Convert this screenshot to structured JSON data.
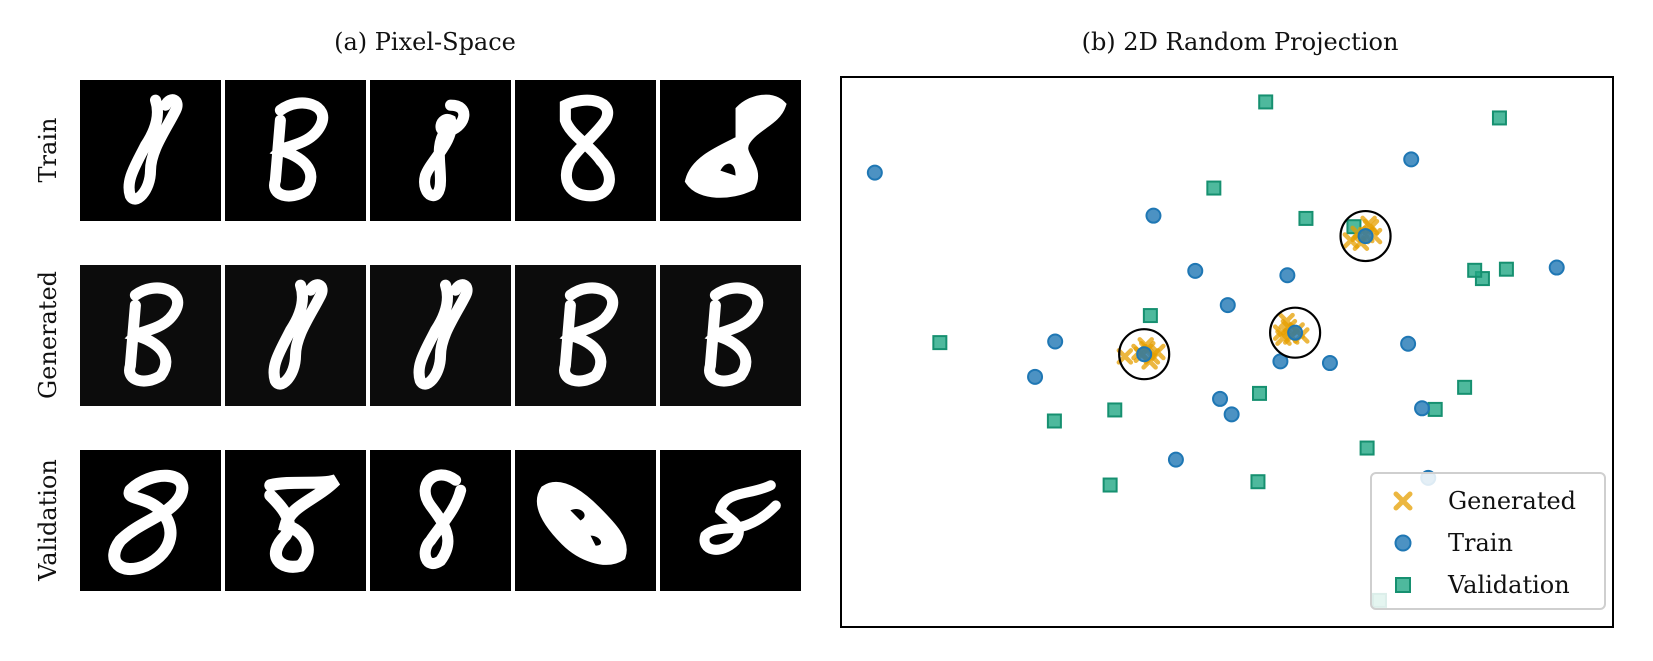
{
  "panel_a": {
    "title": "(a) Pixel-Space",
    "rows": [
      {
        "label": "Train",
        "tiles": [
          "8",
          "8",
          "8",
          "8",
          "8"
        ]
      },
      {
        "label": "Generated",
        "tiles": [
          "8",
          "8",
          "8",
          "8",
          "8"
        ]
      },
      {
        "label": "Validation",
        "tiles": [
          "8",
          "8",
          "8",
          "8",
          "8"
        ]
      }
    ]
  },
  "panel_b": {
    "title": "(b) 2D Random Projection"
  },
  "colors": {
    "generated": "#E69F00",
    "train": "#1f77b4",
    "validation": "#22a884"
  },
  "chart_data": {
    "type": "scatter",
    "title": "(b) 2D Random Projection",
    "xlabel": "",
    "ylabel": "",
    "xlim": [
      0,
      100
    ],
    "ylim": [
      0,
      100
    ],
    "grid": false,
    "legend_position": "bottom-right",
    "series": [
      {
        "name": "Generated",
        "marker": "x",
        "points": [
          [
            39.0,
            49.5
          ],
          [
            39.7,
            50.5
          ],
          [
            40.3,
            49.2
          ],
          [
            38.7,
            50.0
          ],
          [
            40.0,
            48.3
          ],
          [
            39.5,
            51.2
          ],
          [
            41.0,
            50.0
          ],
          [
            36.8,
            49.2
          ],
          [
            57.0,
            53.5
          ],
          [
            58.0,
            54.5
          ],
          [
            58.3,
            52.8
          ],
          [
            59.0,
            53.9
          ],
          [
            57.7,
            55.6
          ],
          [
            59.6,
            53.0
          ],
          [
            57.3,
            52.6
          ],
          [
            66.0,
            70.2
          ],
          [
            67.0,
            71.4
          ],
          [
            68.0,
            71.2
          ],
          [
            68.6,
            72.6
          ],
          [
            67.3,
            69.8
          ],
          [
            69.0,
            71.0
          ],
          [
            68.3,
            73.2
          ]
        ]
      },
      {
        "name": "Train",
        "marker": "o",
        "points": [
          [
            4.5,
            82.5
          ],
          [
            39.3,
            49.6
          ],
          [
            58.8,
            53.5
          ],
          [
            67.9,
            71.0
          ],
          [
            73.8,
            84.9
          ],
          [
            40.5,
            74.7
          ],
          [
            45.9,
            64.7
          ],
          [
            57.8,
            63.9
          ],
          [
            50.1,
            58.5
          ],
          [
            27.8,
            51.9
          ],
          [
            25.2,
            45.5
          ],
          [
            49.1,
            41.5
          ],
          [
            56.9,
            48.3
          ],
          [
            63.3,
            48.0
          ],
          [
            73.4,
            51.5
          ],
          [
            75.2,
            39.8
          ],
          [
            50.6,
            38.7
          ],
          [
            43.4,
            30.5
          ],
          [
            76.0,
            27.2
          ],
          [
            92.6,
            65.3
          ]
        ]
      },
      {
        "name": "Validation",
        "marker": "s",
        "points": [
          [
            55.0,
            95.3
          ],
          [
            85.2,
            92.4
          ],
          [
            48.3,
            79.7
          ],
          [
            60.2,
            74.2
          ],
          [
            66.4,
            72.7
          ],
          [
            83.0,
            63.3
          ],
          [
            82.0,
            64.8
          ],
          [
            86.1,
            65.0
          ],
          [
            40.1,
            56.6
          ],
          [
            12.9,
            51.7
          ],
          [
            54.2,
            42.5
          ],
          [
            80.7,
            43.6
          ],
          [
            35.5,
            39.5
          ],
          [
            27.7,
            37.5
          ],
          [
            76.9,
            39.6
          ],
          [
            68.1,
            32.6
          ],
          [
            34.9,
            25.9
          ],
          [
            54.0,
            26.5
          ],
          [
            69.7,
            5.0
          ]
        ]
      }
    ],
    "highlight_circles": [
      [
        39.3,
        49.6
      ],
      [
        58.8,
        53.5
      ],
      [
        67.9,
        71.0
      ]
    ],
    "legend": [
      "Generated",
      "Train",
      "Validation"
    ]
  }
}
